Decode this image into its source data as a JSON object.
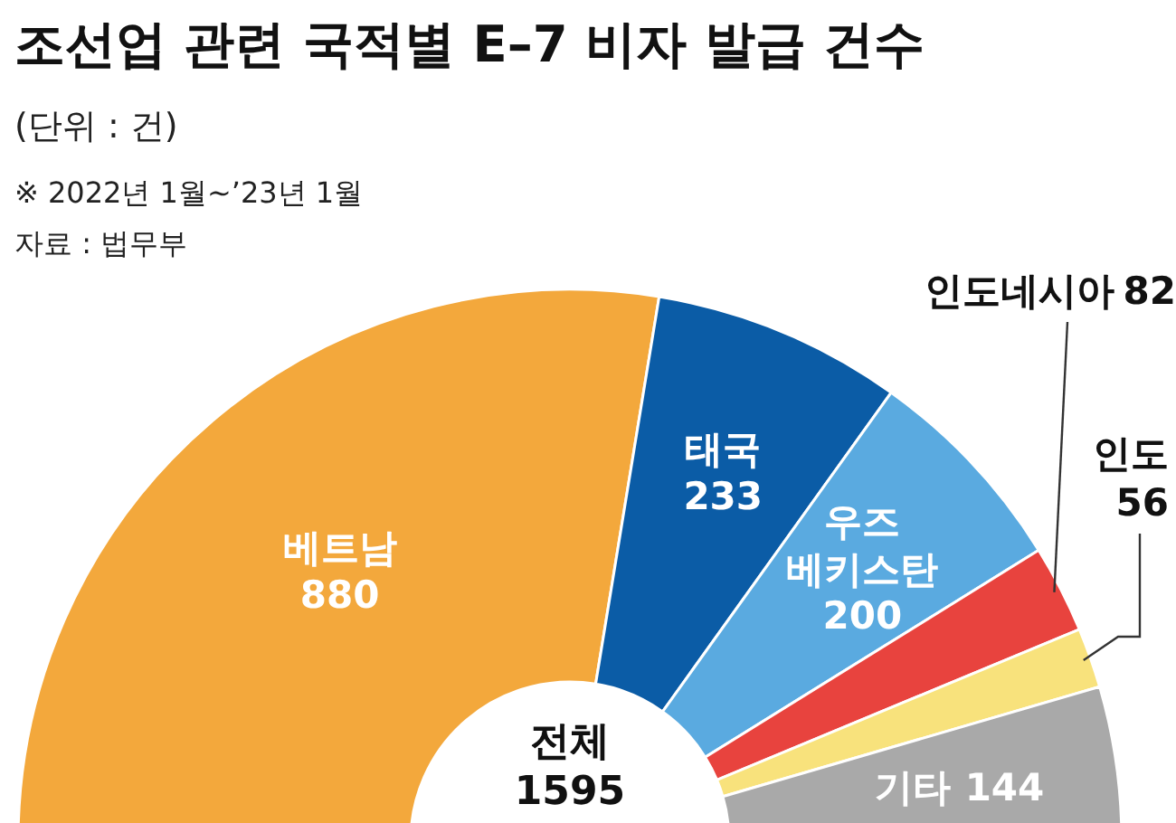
{
  "chart_data": {
    "type": "donut",
    "title": "조선업 관련 국적별 E–7 비자 발급 건수",
    "subtitle": "(단위 : 건)",
    "categories": [
      "베트남",
      "태국",
      "우즈\n베키스탄",
      "인도네시아",
      "인도",
      "기타"
    ],
    "values": [
      880,
      233,
      200,
      82,
      56,
      144
    ],
    "colors": [
      "#f3a83c",
      "#0b5ca6",
      "#5aaae0",
      "#e8433e",
      "#f8e27c",
      "#a9a9a9"
    ],
    "data_labels": true,
    "annotations": [
      "※ 2022년 1월~’23년 1월",
      "자료 : 법무부",
      "전체\n1595"
    ]
  }
}
